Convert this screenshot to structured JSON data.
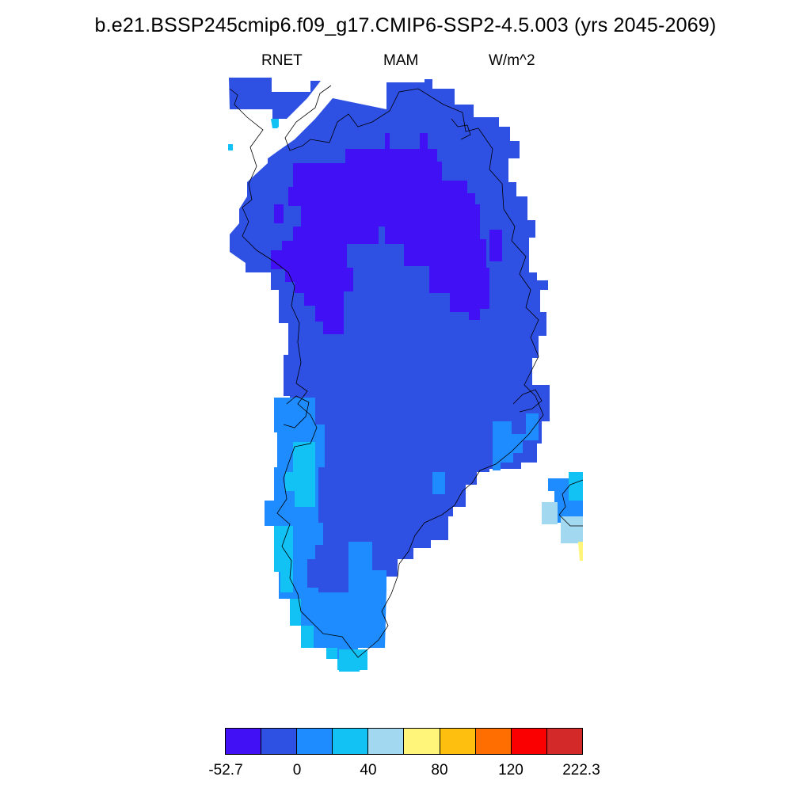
{
  "title": "b.e21.BSSP245cmip6.f09_g17.CMIP6-SSP2-4.5.003 (yrs 2045-2069)",
  "subtitle": {
    "variable": "RNET",
    "season": "MAM",
    "units": "W/m^2"
  },
  "map_region": "Greenland",
  "colorbar": {
    "colors": [
      "#4110f5",
      "#2e50e3",
      "#1e8cff",
      "#12c2f5",
      "#a3d9f0",
      "#fff57a",
      "#ffbf0f",
      "#ff6e00",
      "#fa0000",
      "#d42929"
    ],
    "tick_labels": [
      "-52.7",
      "0",
      "40",
      "80",
      "120",
      "222.3"
    ]
  }
}
